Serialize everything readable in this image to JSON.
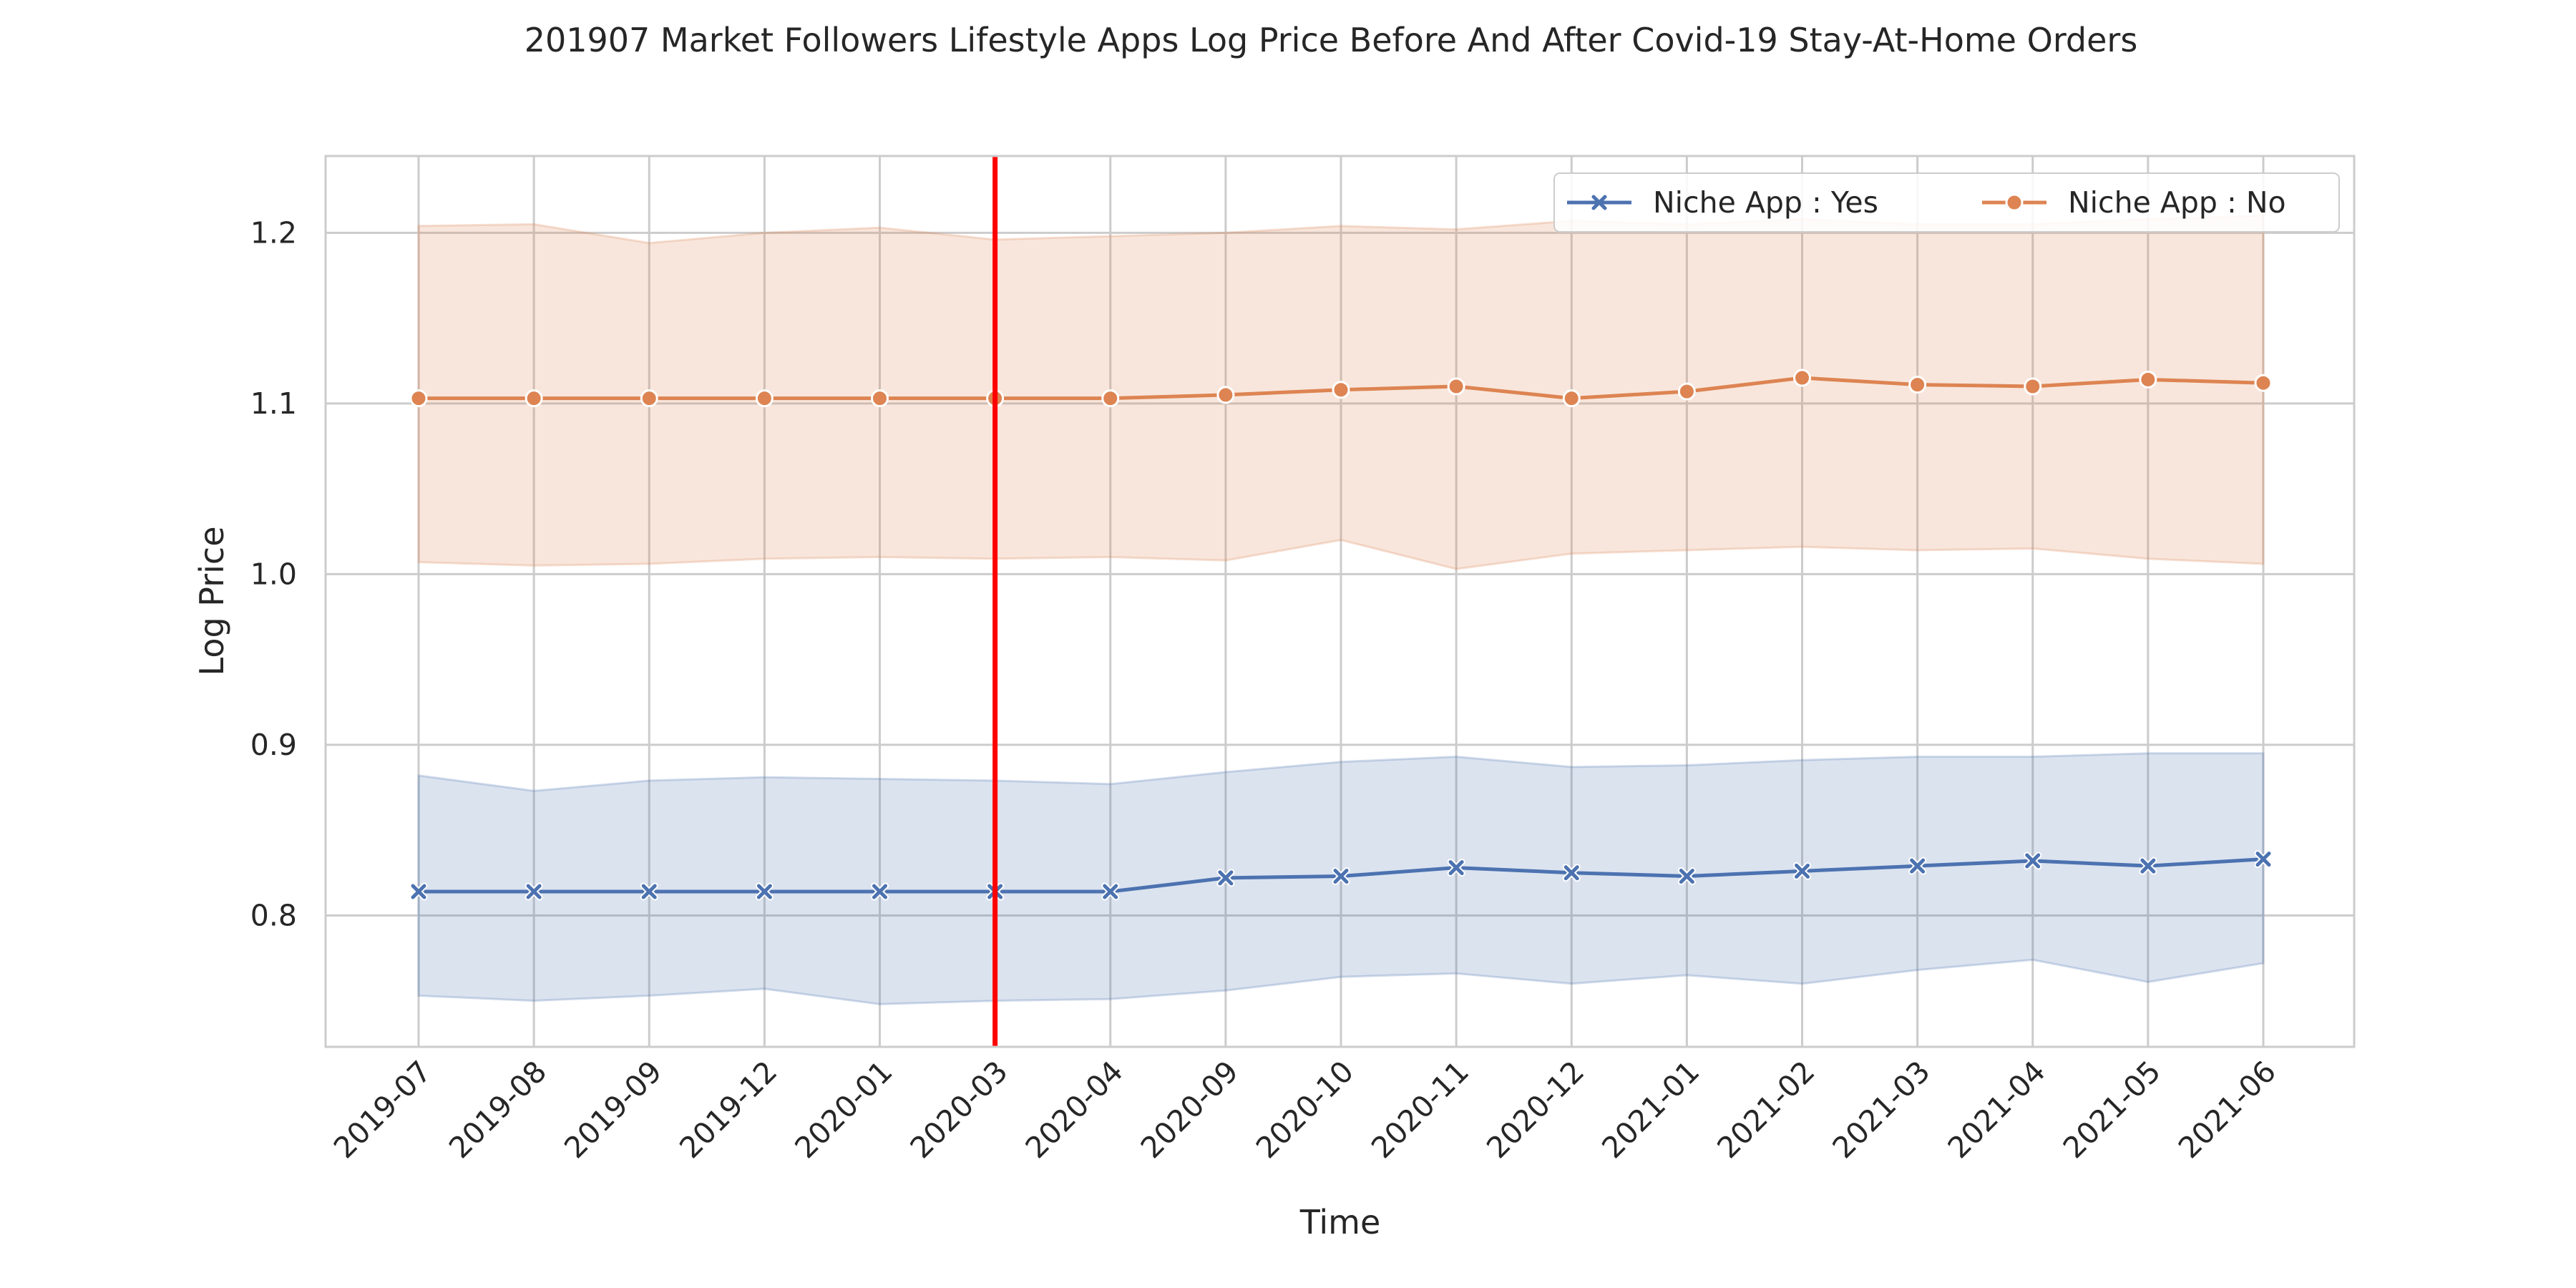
{
  "chart_data": {
    "type": "line",
    "title": "201907 Market Followers Lifestyle Apps Log Price Before And After Covid-19 Stay-At-Home Orders",
    "xlabel": "Time",
    "ylabel": "Log Price",
    "categories": [
      "2019-07",
      "2019-08",
      "2019-09",
      "2019-12",
      "2020-01",
      "2020-03",
      "2020-04",
      "2020-09",
      "2020-10",
      "2020-11",
      "2020-12",
      "2021-01",
      "2021-02",
      "2021-03",
      "2021-04",
      "2021-05",
      "2021-06"
    ],
    "ylim": [
      0.723,
      1.245
    ],
    "yticks": [
      "0.8",
      "0.9",
      "1.0",
      "1.1",
      "1.2"
    ],
    "grid": true,
    "legend_position": "top-right",
    "vertical_marker": {
      "category": "2020-03",
      "color": "#ff0000"
    },
    "series": [
      {
        "name": "Niche App : Yes",
        "marker": "x",
        "color": "#4c72b0",
        "values": [
          0.814,
          0.814,
          0.814,
          0.814,
          0.814,
          0.814,
          0.814,
          0.822,
          0.823,
          0.828,
          0.825,
          0.823,
          0.826,
          0.829,
          0.832,
          0.829,
          0.833
        ],
        "ci_low": [
          0.753,
          0.75,
          0.753,
          0.757,
          0.748,
          0.75,
          0.751,
          0.756,
          0.764,
          0.766,
          0.76,
          0.765,
          0.76,
          0.768,
          0.774,
          0.761,
          0.772
        ],
        "ci_high": [
          0.882,
          0.873,
          0.879,
          0.881,
          0.88,
          0.879,
          0.877,
          0.884,
          0.89,
          0.893,
          0.887,
          0.888,
          0.891,
          0.893,
          0.893,
          0.895,
          0.895
        ]
      },
      {
        "name": "Niche App : No",
        "marker": "o",
        "color": "#dd8452",
        "values": [
          1.103,
          1.103,
          1.103,
          1.103,
          1.103,
          1.103,
          1.103,
          1.105,
          1.108,
          1.11,
          1.103,
          1.107,
          1.115,
          1.111,
          1.11,
          1.114,
          1.112
        ],
        "ci_low": [
          1.007,
          1.005,
          1.006,
          1.009,
          1.01,
          1.009,
          1.01,
          1.008,
          1.02,
          1.003,
          1.012,
          1.014,
          1.016,
          1.014,
          1.015,
          1.009,
          1.006
        ],
        "ci_high": [
          1.204,
          1.205,
          1.194,
          1.2,
          1.203,
          1.196,
          1.198,
          1.2,
          1.204,
          1.202,
          1.207,
          1.205,
          1.208,
          1.205,
          1.205,
          1.208,
          1.21
        ]
      }
    ]
  }
}
